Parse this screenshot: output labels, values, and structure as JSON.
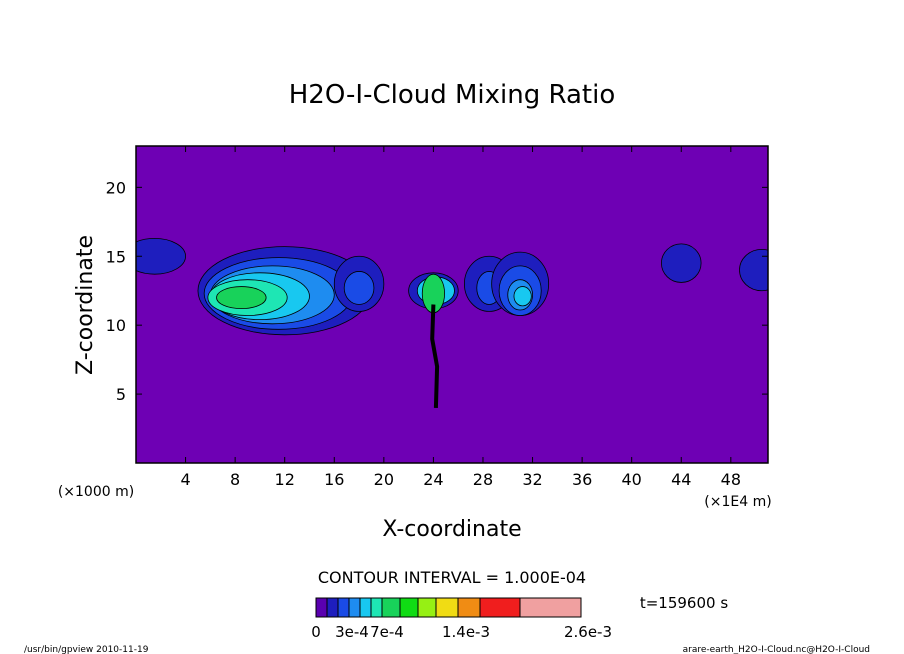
{
  "chart_data": {
    "type": "contour",
    "title": "H2O-I-Cloud Mixing Ratio",
    "xlabel": "X-coordinate",
    "ylabel": "Z-coordinate",
    "x_unit_left": "(×1000 m)",
    "x_unit_right": "(×1E4 m)",
    "xlim": [
      0,
      51
    ],
    "ylim": [
      0,
      23
    ],
    "x_ticks": [
      4,
      8,
      12,
      16,
      20,
      24,
      28,
      32,
      36,
      40,
      44,
      48
    ],
    "y_ticks": [
      5,
      10,
      15,
      20
    ],
    "contour_interval_text": "CONTOUR INTERVAL = 1.000E-04",
    "time_text": "t=159600 s",
    "colorbar": {
      "colors": [
        "#5a00b0",
        "#1e1ebe",
        "#1a4be6",
        "#1e8cf0",
        "#18c8f0",
        "#1ee6b4",
        "#18d25a",
        "#10dc14",
        "#96f014",
        "#f0dc14",
        "#f08c14",
        "#f01e1e",
        "#f0a0a0"
      ],
      "labels": [
        "0",
        "3e-4",
        "7e-4",
        "1.4e-3",
        "2.6e-3"
      ]
    },
    "background_color": "#6e00b4",
    "cells": [
      {
        "level": 1,
        "center": [
          1.5,
          15.0
        ],
        "radius": [
          2.5,
          1.3
        ]
      },
      {
        "level": 1,
        "center": [
          12.0,
          12.5
        ],
        "radius": [
          7.0,
          3.2
        ]
      },
      {
        "level": 2,
        "center": [
          11.5,
          12.3
        ],
        "radius": [
          6.0,
          2.6
        ]
      },
      {
        "level": 3,
        "center": [
          11.0,
          12.2
        ],
        "radius": [
          5.0,
          2.1
        ]
      },
      {
        "level": 4,
        "center": [
          10.0,
          12.1
        ],
        "radius": [
          4.0,
          1.7
        ]
      },
      {
        "level": 5,
        "center": [
          9.0,
          12.0
        ],
        "radius": [
          3.2,
          1.3
        ]
      },
      {
        "level": 6,
        "center": [
          8.5,
          12.0
        ],
        "radius": [
          2.0,
          0.8
        ]
      },
      {
        "level": 1,
        "center": [
          18.0,
          13.0
        ],
        "radius": [
          2.0,
          2.0
        ]
      },
      {
        "level": 2,
        "center": [
          18.0,
          12.7
        ],
        "radius": [
          1.2,
          1.2
        ]
      },
      {
        "level": 1,
        "center": [
          24.0,
          12.5
        ],
        "radius": [
          2.0,
          1.3
        ]
      },
      {
        "level": 4,
        "center": [
          24.2,
          12.5
        ],
        "radius": [
          1.5,
          1.0
        ]
      },
      {
        "level": 6,
        "center": [
          24.0,
          12.3
        ],
        "radius": [
          0.9,
          1.4
        ]
      },
      {
        "level": 1,
        "center": [
          28.5,
          13.0
        ],
        "radius": [
          2.0,
          2.0
        ]
      },
      {
        "level": 2,
        "center": [
          28.5,
          12.7
        ],
        "radius": [
          1.0,
          1.2
        ]
      },
      {
        "level": 1,
        "center": [
          31.0,
          13.0
        ],
        "radius": [
          2.3,
          2.3
        ]
      },
      {
        "level": 2,
        "center": [
          31.0,
          12.5
        ],
        "radius": [
          1.7,
          1.8
        ]
      },
      {
        "level": 3,
        "center": [
          31.0,
          12.2
        ],
        "radius": [
          1.0,
          1.1
        ]
      },
      {
        "level": 4,
        "center": [
          31.2,
          12.1
        ],
        "radius": [
          0.7,
          0.7
        ]
      },
      {
        "level": 1,
        "center": [
          44.0,
          14.5
        ],
        "radius": [
          1.6,
          1.4
        ]
      },
      {
        "level": 1,
        "center": [
          50.5,
          14.0
        ],
        "radius": [
          1.8,
          1.5
        ]
      }
    ],
    "stalk": [
      [
        24.0,
        11.5
      ],
      [
        23.9,
        9.0
      ],
      [
        24.3,
        7.0
      ],
      [
        24.2,
        4.0
      ]
    ]
  },
  "footer": {
    "left": "/usr/bin/gpview   2010-11-19",
    "right": "arare-earth_H2O-I-Cloud.nc@H2O-I-Cloud"
  }
}
